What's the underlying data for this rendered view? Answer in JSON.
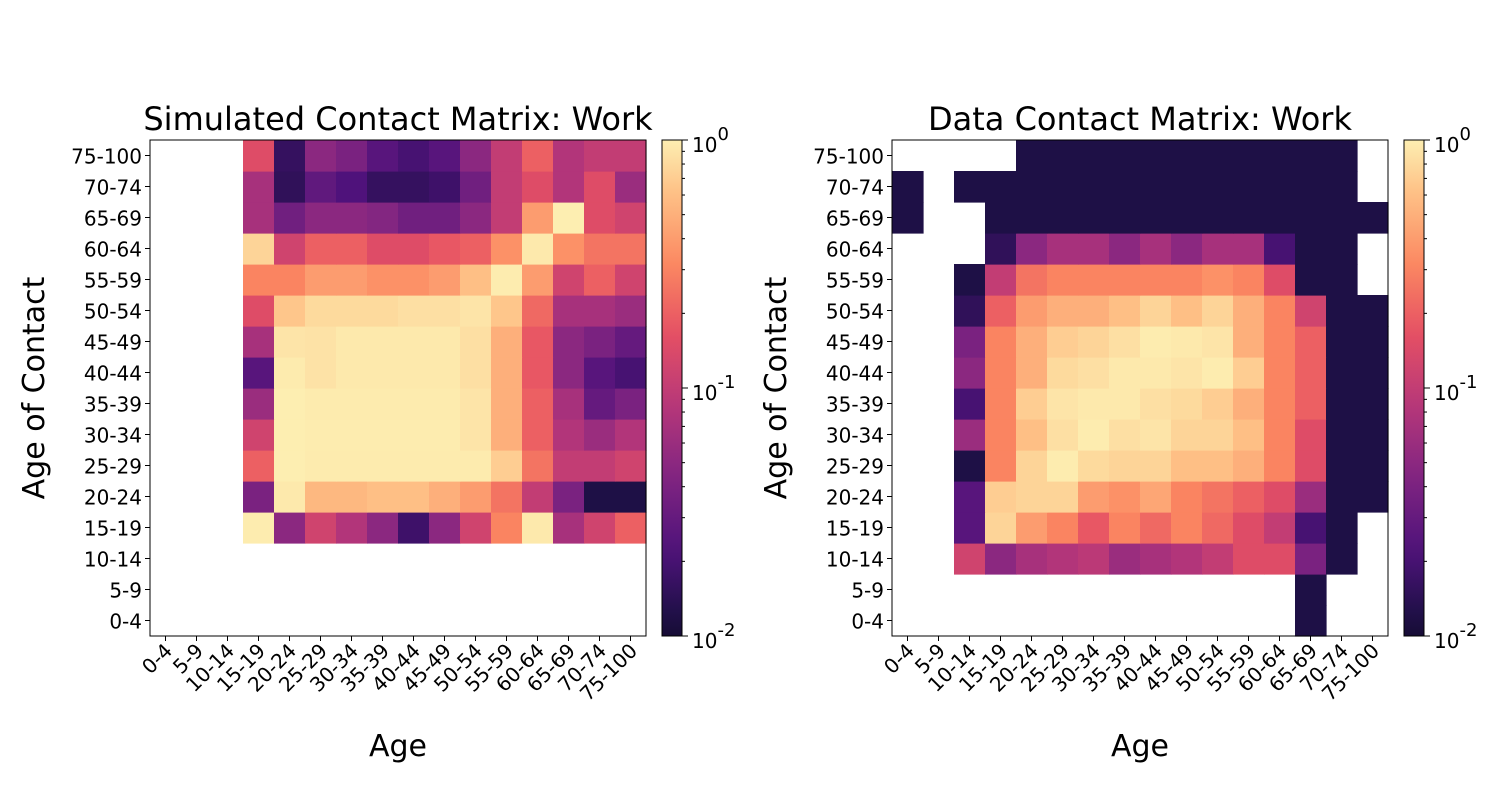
{
  "chart_data": [
    {
      "type": "heatmap",
      "title": "Simulated Contact Matrix: Work",
      "xlabel": "Age",
      "ylabel": "Age of Contact",
      "x_categories": [
        "0-4",
        "5-9",
        "10-14",
        "15-19",
        "20-24",
        "25-29",
        "30-34",
        "35-39",
        "40-44",
        "45-49",
        "50-54",
        "55-59",
        "60-64",
        "65-69",
        "70-74",
        "75-100"
      ],
      "y_categories": [
        "0-4",
        "5-9",
        "10-14",
        "15-19",
        "20-24",
        "25-29",
        "30-34",
        "35-39",
        "40-44",
        "45-49",
        "50-54",
        "55-59",
        "60-64",
        "65-69",
        "70-74",
        "75-100"
      ],
      "color_scale": "log",
      "colormap": "magma",
      "colorbar_range": [
        0.01,
        1
      ],
      "colorbar_ticks": [
        "10",
        "10",
        "10"
      ],
      "colorbar_exponents": [
        "-2",
        "-1",
        "0"
      ],
      "values": [
        [
          null,
          null,
          null,
          null,
          null,
          null,
          null,
          null,
          null,
          null,
          null,
          null,
          null,
          null,
          null,
          null
        ],
        [
          null,
          null,
          null,
          null,
          null,
          null,
          null,
          null,
          null,
          null,
          null,
          null,
          null,
          null,
          null,
          null
        ],
        [
          null,
          null,
          null,
          null,
          null,
          null,
          null,
          null,
          null,
          null,
          null,
          null,
          null,
          null,
          null,
          null
        ],
        [
          null,
          null,
          null,
          0.98,
          0.05,
          0.12,
          0.08,
          0.05,
          0.018,
          0.05,
          0.12,
          0.3,
          0.95,
          0.07,
          0.12,
          0.2
        ],
        [
          null,
          null,
          null,
          0.04,
          0.95,
          0.55,
          0.55,
          0.6,
          0.6,
          0.5,
          0.4,
          0.25,
          0.1,
          0.04,
          0.012,
          0.012
        ],
        [
          null,
          null,
          null,
          0.2,
          1,
          0.97,
          0.97,
          0.97,
          0.97,
          0.97,
          0.97,
          0.7,
          0.25,
          0.1,
          0.1,
          0.12
        ],
        [
          null,
          null,
          null,
          0.12,
          1,
          0.98,
          0.98,
          0.98,
          0.98,
          0.98,
          0.9,
          0.5,
          0.2,
          0.08,
          0.06,
          0.08
        ],
        [
          null,
          null,
          null,
          0.06,
          1,
          0.97,
          0.97,
          0.97,
          0.97,
          0.97,
          0.9,
          0.5,
          0.2,
          0.07,
          0.03,
          0.04
        ],
        [
          null,
          null,
          null,
          0.025,
          0.97,
          0.88,
          0.95,
          0.95,
          0.95,
          0.95,
          0.85,
          0.5,
          0.18,
          0.05,
          0.025,
          0.02
        ],
        [
          null,
          null,
          null,
          0.07,
          0.9,
          0.88,
          0.95,
          0.95,
          0.95,
          0.95,
          0.85,
          0.5,
          0.18,
          0.05,
          0.04,
          0.03
        ],
        [
          null,
          null,
          null,
          0.15,
          0.65,
          0.8,
          0.8,
          0.8,
          0.85,
          0.85,
          0.9,
          0.65,
          0.22,
          0.07,
          0.07,
          0.06
        ],
        [
          null,
          null,
          null,
          0.3,
          0.3,
          0.4,
          0.4,
          0.35,
          0.35,
          0.4,
          0.6,
          0.98,
          0.4,
          0.12,
          0.2,
          0.12
        ],
        [
          null,
          null,
          null,
          0.75,
          0.12,
          0.2,
          0.2,
          0.15,
          0.15,
          0.18,
          0.2,
          0.35,
          0.95,
          0.35,
          0.25,
          0.25
        ],
        [
          null,
          null,
          null,
          0.07,
          0.035,
          0.05,
          0.05,
          0.045,
          0.035,
          0.035,
          0.05,
          0.1,
          0.4,
          1,
          0.15,
          0.12
        ],
        [
          null,
          null,
          null,
          0.07,
          0.015,
          0.028,
          0.022,
          0.016,
          0.016,
          0.018,
          0.035,
          0.1,
          0.15,
          0.08,
          0.15,
          0.06
        ],
        [
          null,
          null,
          null,
          0.15,
          0.016,
          0.05,
          0.04,
          0.025,
          0.02,
          0.025,
          0.05,
          0.1,
          0.2,
          0.08,
          0.1,
          0.1
        ]
      ]
    },
    {
      "type": "heatmap",
      "title": "Data Contact Matrix: Work",
      "xlabel": "Age",
      "ylabel": "Age of Contact",
      "x_categories": [
        "0-4",
        "5-9",
        "10-14",
        "15-19",
        "20-24",
        "25-29",
        "30-34",
        "35-39",
        "40-44",
        "45-49",
        "50-54",
        "55-59",
        "60-64",
        "65-69",
        "70-74",
        "75-100"
      ],
      "y_categories": [
        "0-4",
        "5-9",
        "10-14",
        "15-19",
        "20-24",
        "25-29",
        "30-34",
        "35-39",
        "40-44",
        "45-49",
        "50-54",
        "55-59",
        "60-64",
        "65-69",
        "70-74",
        "75-100"
      ],
      "color_scale": "log",
      "colormap": "magma",
      "colorbar_range": [
        0.01,
        1
      ],
      "colorbar_ticks": [
        "10",
        "10",
        "10"
      ],
      "colorbar_exponents": [
        "-2",
        "-1",
        "0"
      ],
      "values": [
        [
          null,
          null,
          null,
          null,
          null,
          null,
          null,
          null,
          null,
          null,
          null,
          null,
          null,
          0.012,
          null,
          null
        ],
        [
          null,
          null,
          null,
          null,
          null,
          null,
          null,
          null,
          null,
          null,
          null,
          null,
          null,
          0.012,
          null,
          null
        ],
        [
          null,
          null,
          0.12,
          0.05,
          0.07,
          0.08,
          0.09,
          0.06,
          0.07,
          0.08,
          0.1,
          0.15,
          0.15,
          0.04,
          0.012,
          null
        ],
        [
          null,
          null,
          0.025,
          0.75,
          0.4,
          0.3,
          0.18,
          0.3,
          0.22,
          0.3,
          0.22,
          0.15,
          0.1,
          0.02,
          0.012,
          null
        ],
        [
          null,
          null,
          0.025,
          0.7,
          0.75,
          0.75,
          0.4,
          0.35,
          0.45,
          0.3,
          0.25,
          0.2,
          0.15,
          0.06,
          0.012,
          0.012
        ],
        [
          null,
          null,
          0.012,
          0.3,
          0.75,
          0.98,
          0.8,
          0.75,
          0.75,
          0.6,
          0.6,
          0.5,
          0.3,
          0.15,
          0.012,
          0.012
        ],
        [
          null,
          null,
          0.06,
          0.3,
          0.6,
          0.85,
          0.98,
          0.85,
          0.9,
          0.75,
          0.75,
          0.6,
          0.3,
          0.15,
          0.012,
          0.012
        ],
        [
          null,
          null,
          0.02,
          0.3,
          0.7,
          0.9,
          0.95,
          0.95,
          0.85,
          0.8,
          0.7,
          0.5,
          0.3,
          0.2,
          0.012,
          0.012
        ],
        [
          null,
          null,
          0.05,
          0.3,
          0.5,
          0.8,
          0.85,
          0.95,
          0.95,
          0.9,
          0.98,
          0.7,
          0.3,
          0.2,
          0.012,
          0.012
        ],
        [
          null,
          null,
          0.04,
          0.3,
          0.5,
          0.7,
          0.75,
          0.85,
          0.98,
          0.95,
          0.9,
          0.5,
          0.3,
          0.2,
          0.012,
          0.012
        ],
        [
          null,
          null,
          0.015,
          0.2,
          0.4,
          0.5,
          0.5,
          0.6,
          0.75,
          0.6,
          0.75,
          0.5,
          0.3,
          0.12,
          0.012,
          0.012
        ],
        [
          null,
          null,
          0.012,
          0.1,
          0.25,
          0.3,
          0.3,
          0.3,
          0.3,
          0.3,
          0.35,
          0.3,
          0.15,
          0.012,
          0.012,
          null
        ],
        [
          null,
          null,
          null,
          0.015,
          0.05,
          0.07,
          0.07,
          0.05,
          0.07,
          0.05,
          0.07,
          0.07,
          0.02,
          0.012,
          0.012,
          null
        ],
        [
          0.012,
          null,
          null,
          0.012,
          0.012,
          0.012,
          0.012,
          0.012,
          0.012,
          0.012,
          0.012,
          0.012,
          0.012,
          0.012,
          0.012,
          0.012
        ],
        [
          0.012,
          null,
          0.012,
          0.012,
          0.012,
          0.012,
          0.012,
          0.012,
          0.012,
          0.012,
          0.012,
          0.012,
          0.012,
          0.012,
          0.012,
          null
        ],
        [
          null,
          null,
          null,
          null,
          0.012,
          0.012,
          0.012,
          0.012,
          0.012,
          0.012,
          0.012,
          0.012,
          0.012,
          0.012,
          0.012,
          null
        ]
      ]
    }
  ]
}
